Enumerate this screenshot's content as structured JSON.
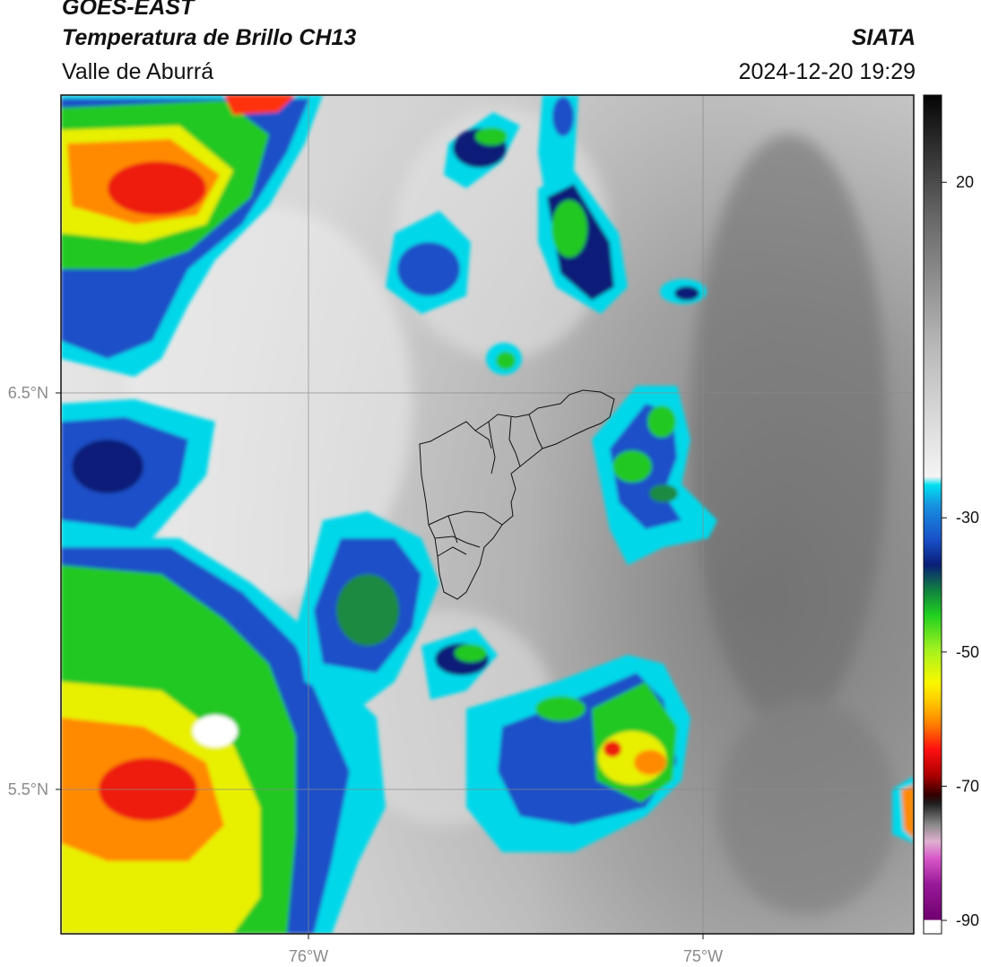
{
  "header": {
    "satellite": "GOES-EAST",
    "product": "Temperatura de Brillo CH13",
    "region": "Valle de Aburrá",
    "organization": "SIATA",
    "timestamp": "2024-12-20 19:29"
  },
  "map": {
    "lat_ticks": [
      "6.5°N",
      "5.5°N"
    ],
    "lon_ticks": [
      "76°W",
      "75°W"
    ],
    "grid": true
  },
  "colorbar": {
    "ticks": [
      "20",
      "-30",
      "-50",
      "-70",
      "-90"
    ],
    "range": [
      -92,
      33
    ],
    "colors": {
      "white": "#ffffff",
      "cyan": "#00e0f0",
      "blue": "#1850c8",
      "navy": "#0a1e78",
      "green": "#20d020",
      "lime": "#a0f020",
      "yellow": "#f8f800",
      "orange": "#ff8000",
      "red": "#e81010",
      "black": "#101010",
      "magenta": "#d040c0",
      "purple": "#800080"
    }
  }
}
